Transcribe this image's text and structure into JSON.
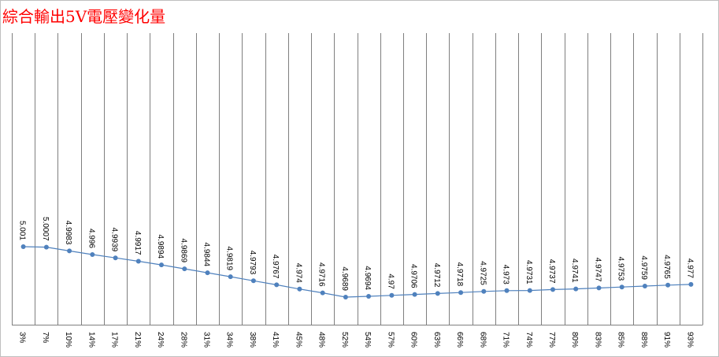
{
  "chart_data": {
    "type": "line",
    "title": "綜合輸出5V電壓變化量",
    "xlabel": "",
    "ylabel": "",
    "categories": [
      "3%",
      "7%",
      "10%",
      "14%",
      "17%",
      "21%",
      "24%",
      "28%",
      "31%",
      "34%",
      "38%",
      "41%",
      "45%",
      "48%",
      "52%",
      "54%",
      "57%",
      "60%",
      "63%",
      "66%",
      "68%",
      "71%",
      "74%",
      "77%",
      "80%",
      "83%",
      "85%",
      "88%",
      "91%",
      "93%"
    ],
    "values": [
      5.001,
      5.0007,
      4.9983,
      4.996,
      4.9939,
      4.9917,
      4.9894,
      4.9869,
      4.9844,
      4.9819,
      4.9793,
      4.9767,
      4.974,
      4.9716,
      4.9689,
      4.9694,
      4.97,
      4.9706,
      4.9712,
      4.9718,
      4.9725,
      4.973,
      4.9731,
      4.9737,
      4.9741,
      4.9747,
      4.9753,
      4.9759,
      4.9765,
      4.977
    ],
    "value_labels": [
      "5.001",
      "5.0007",
      "4.9983",
      "4.996",
      "4.9939",
      "4.9917",
      "4.9894",
      "4.9869",
      "4.9844",
      "4.9819",
      "4.9793",
      "4.9767",
      "4.974",
      "4.9716",
      "4.9689",
      "4.9694",
      "4.97",
      "4.9706",
      "4.9712",
      "4.9718",
      "4.9725",
      "4.973",
      "4.9731",
      "4.9737",
      "4.9741",
      "4.9747",
      "4.9753",
      "4.9759",
      "4.9765",
      "4.977"
    ],
    "grid": "vertical",
    "legend": "none",
    "colors": {
      "line": "#4f81bd",
      "marker": "#4f81bd",
      "grid": "#7f7f7f",
      "title": "#ff0000",
      "text": "#000000"
    }
  }
}
